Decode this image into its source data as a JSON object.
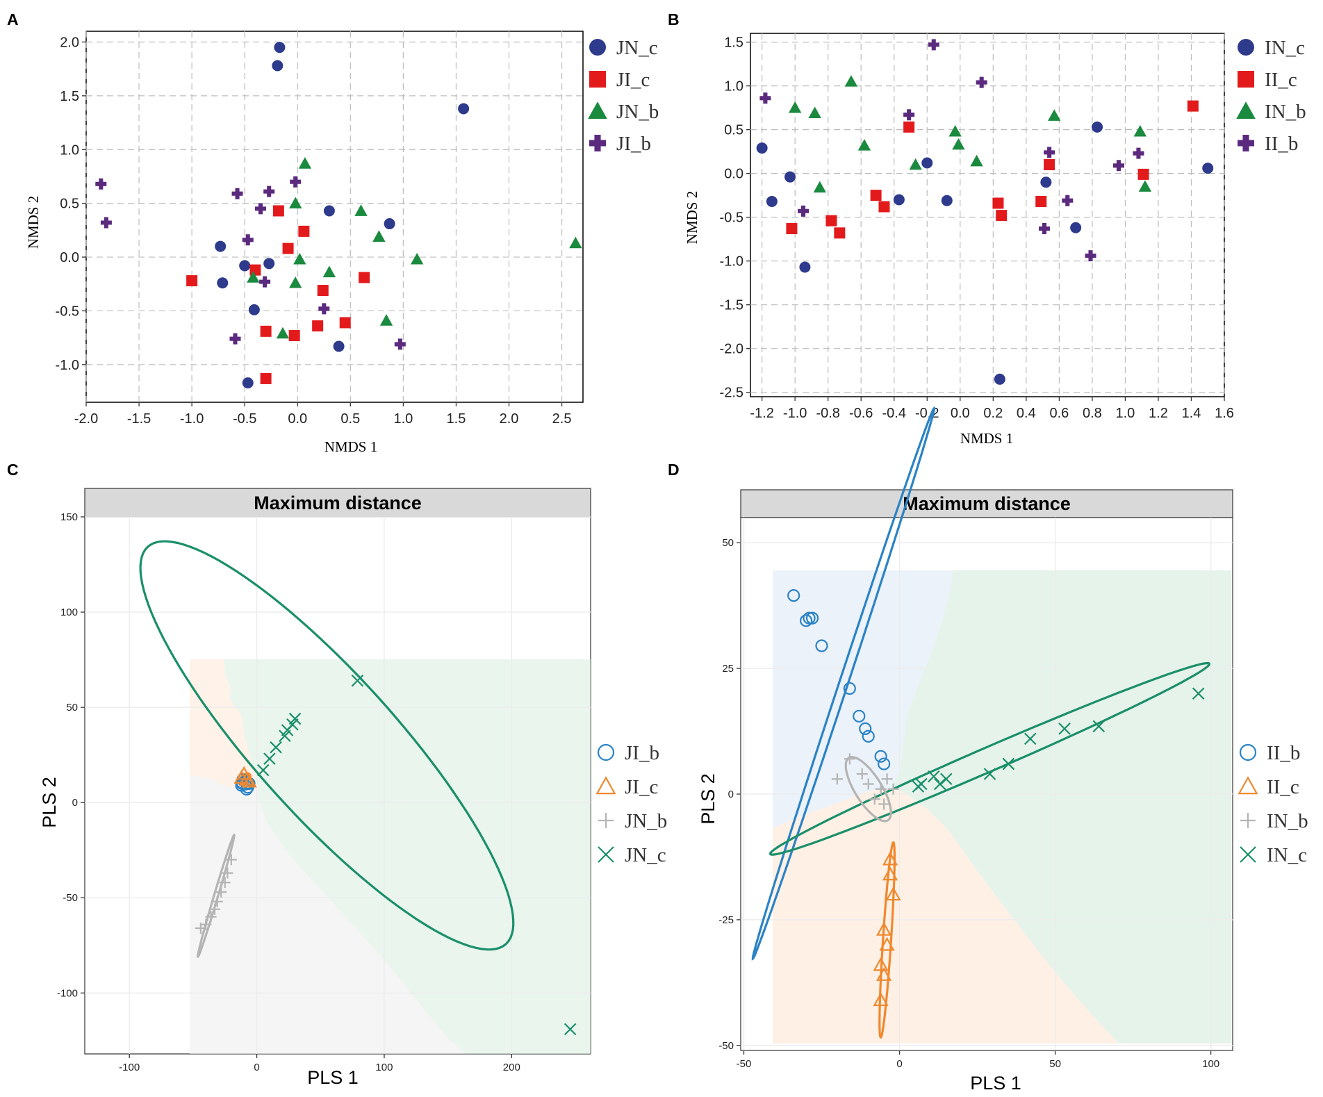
{
  "panel_labels": [
    "A",
    "B",
    "C",
    "D"
  ],
  "chart_data": [
    {
      "panel": "A",
      "type": "scatter",
      "xlabel": "NMDS 1",
      "ylabel": "NMDS 2",
      "xlim": [
        -2.0,
        2.7
      ],
      "ylim": [
        -1.35,
        2.1
      ],
      "xticks": [
        "-2.0",
        "-1.5",
        "-1.0",
        "-0.5",
        "0.0",
        "0.5",
        "1.0",
        "1.5",
        "2.0",
        "2.5"
      ],
      "yticks": [
        "-1.0",
        "-0.5",
        "0.0",
        "0.5",
        "1.0",
        "1.5",
        "2.0"
      ],
      "grid": true,
      "legend_position": "right",
      "series": [
        {
          "name": "JN_c",
          "marker": "circle",
          "color": "#2e3a8c",
          "x": [
            -0.17,
            -0.19,
            1.57,
            0.3,
            0.87,
            -0.73,
            -0.5,
            -0.71,
            -0.27,
            -0.41,
            0.39,
            -0.47
          ],
          "y": [
            1.95,
            1.78,
            1.38,
            0.43,
            0.31,
            0.1,
            -0.08,
            -0.24,
            -0.06,
            -0.49,
            -0.83,
            -1.17
          ]
        },
        {
          "name": "JI_c",
          "marker": "square",
          "color": "#e31a1c",
          "x": [
            -0.18,
            0.06,
            -0.09,
            -0.4,
            -1.0,
            0.63,
            0.24,
            -0.3,
            0.45,
            0.19,
            -0.03,
            -0.3
          ],
          "y": [
            0.43,
            0.24,
            0.08,
            -0.12,
            -0.22,
            -0.19,
            -0.31,
            -0.69,
            -0.61,
            -0.64,
            -0.73,
            -1.13
          ]
        },
        {
          "name": "JN_b",
          "marker": "triangle",
          "color": "#1a8a3e",
          "x": [
            0.07,
            -0.02,
            0.6,
            0.77,
            0.02,
            1.13,
            0.3,
            -0.42,
            -0.02,
            0.84,
            -0.14,
            2.63
          ],
          "y": [
            0.87,
            0.5,
            0.43,
            0.19,
            -0.02,
            -0.02,
            -0.14,
            -0.19,
            -0.24,
            -0.59,
            -0.71,
            0.13
          ]
        },
        {
          "name": "JI_b",
          "marker": "plus",
          "color": "#5b2a7e",
          "x": [
            -1.86,
            -1.81,
            -0.02,
            -0.57,
            -0.27,
            -0.35,
            -0.47,
            -0.31,
            0.25,
            -0.59,
            0.97
          ],
          "y": [
            0.68,
            0.32,
            0.7,
            0.59,
            0.61,
            0.45,
            0.16,
            -0.23,
            -0.48,
            -0.76,
            -0.81
          ]
        }
      ]
    },
    {
      "panel": "B",
      "type": "scatter",
      "xlabel": "NMDS 1",
      "ylabel": "NMDS 2",
      "xlim": [
        -1.27,
        1.6
      ],
      "ylim": [
        -2.55,
        1.6
      ],
      "xticks": [
        "-1.2",
        "-1.0",
        "-0.8",
        "-0.6",
        "-0.4",
        "-0.2",
        "0.0",
        "0.2",
        "0.4",
        "0.6",
        "0.8",
        "1.0",
        "1.2",
        "1.4",
        "1.6"
      ],
      "yticks": [
        "-2.5",
        "-2.0",
        "-1.5",
        "-1.0",
        "-0.5",
        "0.0",
        "0.5",
        "1.0",
        "1.5"
      ],
      "grid": true,
      "legend_position": "right",
      "series": [
        {
          "name": "IN_c",
          "marker": "circle",
          "color": "#2e3a8c",
          "x": [
            -1.2,
            -1.14,
            -1.03,
            -0.94,
            -0.37,
            -0.2,
            -0.08,
            0.24,
            0.52,
            0.7,
            0.83,
            1.5
          ],
          "y": [
            0.29,
            -0.32,
            -0.04,
            -1.07,
            -0.3,
            0.12,
            -0.31,
            -2.35,
            -0.1,
            -0.62,
            0.53,
            0.06
          ]
        },
        {
          "name": "II_c",
          "marker": "square",
          "color": "#e31a1c",
          "x": [
            -1.02,
            -0.78,
            -0.73,
            -0.51,
            -0.46,
            -0.31,
            0.23,
            0.25,
            0.49,
            0.54,
            1.11,
            1.41
          ],
          "y": [
            -0.63,
            -0.54,
            -0.68,
            -0.25,
            -0.38,
            0.53,
            -0.34,
            -0.48,
            -0.32,
            0.1,
            -0.01,
            0.77
          ]
        },
        {
          "name": "IN_b",
          "marker": "triangle",
          "color": "#1a8a3e",
          "x": [
            -1.0,
            -0.88,
            -0.85,
            -0.66,
            -0.58,
            -0.27,
            -0.03,
            -0.01,
            0.1,
            0.57,
            1.09,
            1.12
          ],
          "y": [
            0.75,
            0.69,
            -0.16,
            1.05,
            0.32,
            0.1,
            0.48,
            0.33,
            0.14,
            0.66,
            0.48,
            -0.15
          ]
        },
        {
          "name": "II_b",
          "marker": "plus",
          "color": "#5b2a7e",
          "x": [
            -1.18,
            -0.95,
            -0.31,
            -0.16,
            0.13,
            0.51,
            0.54,
            0.65,
            0.79,
            0.96,
            1.08
          ],
          "y": [
            0.86,
            -0.43,
            0.67,
            1.47,
            1.04,
            -0.63,
            0.24,
            -0.31,
            -0.94,
            0.09,
            0.23
          ]
        }
      ]
    },
    {
      "panel": "C",
      "type": "scatter",
      "title": "Maximum distance",
      "xlabel": "PLS 1",
      "ylabel": "PLS 2",
      "xlim": [
        -135,
        262
      ],
      "ylim": [
        -132,
        150
      ],
      "xticks": [
        -100,
        0,
        100,
        200
      ],
      "yticks": [
        -100,
        -50,
        0,
        50,
        100,
        150
      ],
      "grid": true,
      "legend_position": "right",
      "series": [
        {
          "name": "JI_b",
          "marker": "circle-open",
          "color": "#2b83c6",
          "x": [
            -12,
            -9,
            -7,
            -6,
            -11,
            -8
          ],
          "y": [
            9,
            11,
            8,
            10,
            12,
            7
          ]
        },
        {
          "name": "JI_c",
          "marker": "triangle-open",
          "color": "#f0882d",
          "x": [
            -12,
            -10,
            -8,
            -6
          ],
          "y": [
            13,
            15,
            12,
            11
          ]
        },
        {
          "name": "JN_b",
          "marker": "plus",
          "color": "#b4b4b4",
          "x": [
            -20,
            -23,
            -25,
            -28,
            -31,
            -33,
            -36,
            -40,
            -44
          ],
          "y": [
            -30,
            -37,
            -42,
            -47,
            -52,
            -56,
            -60,
            -64,
            -66
          ]
        },
        {
          "name": "JN_c",
          "marker": "cross",
          "color": "#1a8f6a",
          "x": [
            79,
            30,
            28,
            24,
            22,
            15,
            10,
            5,
            246
          ],
          "y": [
            64,
            44,
            41,
            38,
            35,
            29,
            23,
            17,
            -119
          ]
        }
      ],
      "ellipses": [
        {
          "group": "JN_c",
          "center": [
            55,
            30
          ],
          "semi_major": 176,
          "semi_minor": 44,
          "angle_deg": -35
        },
        {
          "group": "JN_b",
          "center": [
            -32,
            -49
          ],
          "semi_major": 35,
          "semi_minor": 1.5,
          "angle_deg": 66
        },
        {
          "group": "JI_b",
          "center": [
            -9,
            10
          ],
          "semi_major": 7,
          "semi_minor": 3,
          "angle_deg": 0
        },
        {
          "group": "JI_c",
          "center": [
            -9,
            13
          ],
          "semi_major": 4,
          "semi_minor": 2,
          "angle_deg": 20
        }
      ]
    },
    {
      "panel": "D",
      "type": "scatter",
      "title": "Maximum distance",
      "xlabel": "PLS 1",
      "ylabel": "PLS 2",
      "xlim": [
        -51,
        107
      ],
      "ylim": [
        -51,
        55
      ],
      "xticks": [
        -50,
        0,
        50,
        100
      ],
      "yticks": [
        -50,
        -25,
        0,
        25,
        50
      ],
      "grid": true,
      "legend_position": "right",
      "series": [
        {
          "name": "II_b",
          "marker": "circle-open",
          "color": "#2b83c6",
          "x": [
            -34,
            -30,
            -29,
            -28,
            -25,
            -16,
            -13,
            -11,
            -10,
            -6,
            -5
          ],
          "y": [
            39.5,
            34.5,
            35,
            35,
            29.5,
            21,
            15.5,
            13,
            11.5,
            7.5,
            6
          ]
        },
        {
          "name": "II_c",
          "marker": "triangle-open",
          "color": "#f0882d",
          "x": [
            -3,
            -3,
            -2,
            -5,
            -4,
            -6,
            -5,
            -6
          ],
          "y": [
            -13,
            -16,
            -20,
            -27,
            -30,
            -34,
            -36,
            -41
          ]
        },
        {
          "name": "IN_b",
          "marker": "plus",
          "color": "#b4b4b4",
          "x": [
            -20,
            -16,
            -12,
            -10,
            -8,
            -6,
            -5,
            -4,
            -2
          ],
          "y": [
            3,
            7,
            4,
            2,
            -1,
            1,
            -2,
            3,
            1
          ]
        },
        {
          "name": "IN_c",
          "marker": "cross",
          "color": "#1a8f6a",
          "x": [
            6,
            7,
            11,
            13,
            15,
            29,
            35,
            42,
            53,
            64,
            96
          ],
          "y": [
            1.5,
            2,
            3.5,
            2,
            3,
            4,
            6,
            11,
            13,
            13.5,
            20
          ]
        }
      ],
      "ellipses": [
        {
          "group": "II_b",
          "center": [
            -18,
            22
          ],
          "semi_major": 62,
          "semi_minor": 1.3,
          "angle_deg": 62
        },
        {
          "group": "IN_c",
          "center": [
            29,
            7
          ],
          "semi_major": 73,
          "semi_minor": 2.5,
          "angle_deg": 15
        },
        {
          "group": "IN_b",
          "center": [
            -10,
            1
          ],
          "semi_major": 9,
          "semi_minor": 3.5,
          "angle_deg": -40
        },
        {
          "group": "II_c",
          "center": [
            -4,
            -29
          ],
          "semi_major": 19.5,
          "semi_minor": 1.3,
          "angle_deg": 84
        }
      ]
    }
  ]
}
